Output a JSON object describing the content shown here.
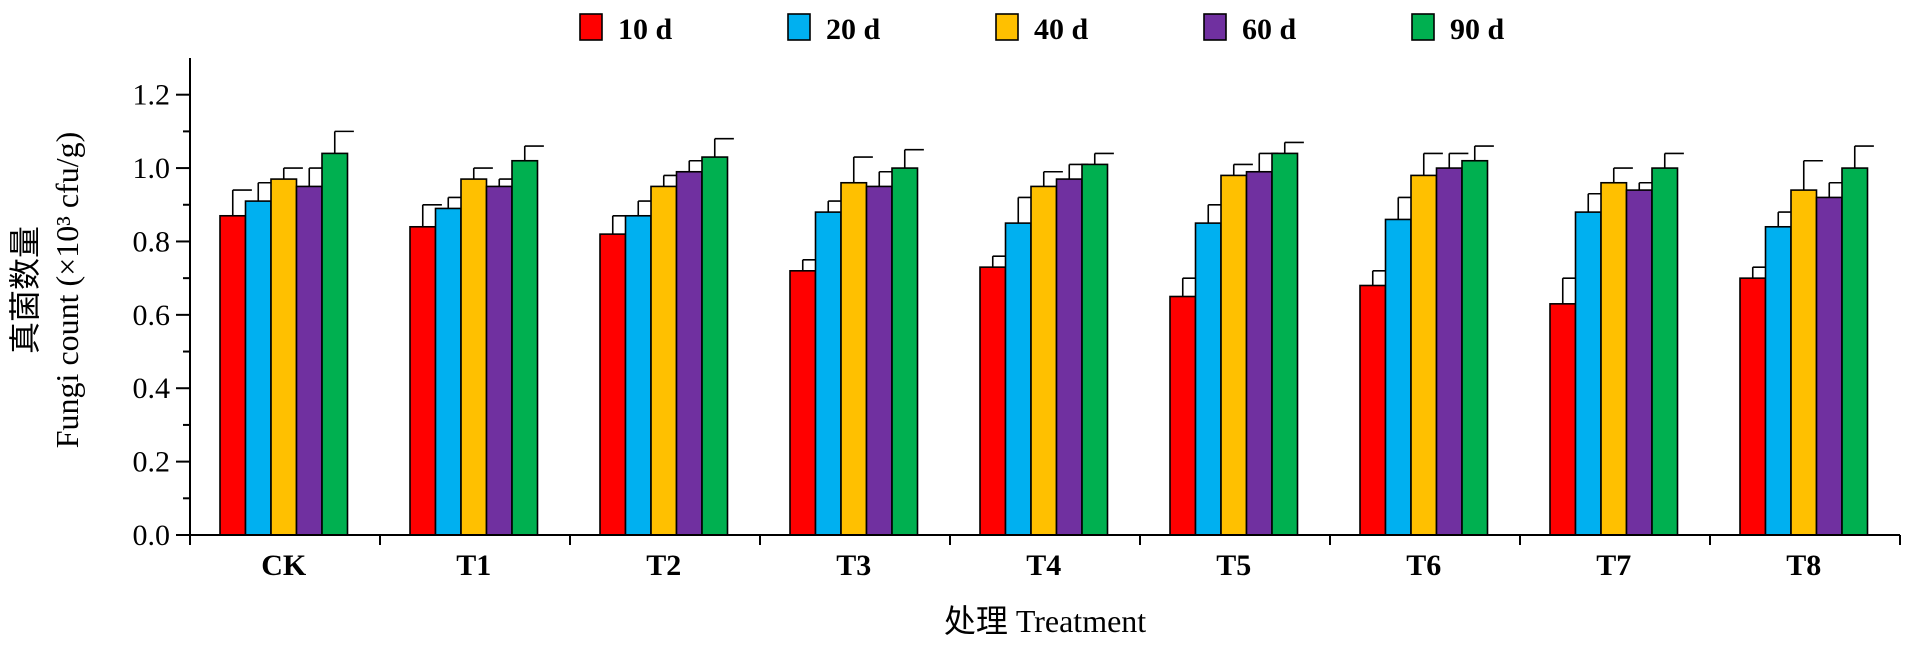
{
  "chart_data": {
    "type": "bar",
    "title": "",
    "xlabel": "处理 Treatment",
    "ylabel_cn": "真菌数量",
    "ylabel": "Fungi count (×10³ cfu/g)",
    "ylim": [
      0,
      1.3
    ],
    "yticks": [
      "0.0",
      "0.2",
      "0.4",
      "0.6",
      "0.8",
      "1.0",
      "1.2"
    ],
    "ytick_values": [
      0,
      0.2,
      0.4,
      0.6,
      0.8,
      1.0,
      1.2
    ],
    "grid": false,
    "legend_position": "top",
    "categories": [
      "CK",
      "T1",
      "T2",
      "T3",
      "T4",
      "T5",
      "T6",
      "T7",
      "T8"
    ],
    "series": [
      {
        "name": "10 d",
        "color": "#ff0000",
        "values": [
          0.87,
          0.84,
          0.82,
          0.72,
          0.73,
          0.65,
          0.68,
          0.63,
          0.7
        ],
        "errors": [
          0.07,
          0.06,
          0.05,
          0.03,
          0.03,
          0.05,
          0.04,
          0.07,
          0.03
        ]
      },
      {
        "name": "20 d",
        "color": "#00b0f0",
        "values": [
          0.91,
          0.89,
          0.87,
          0.88,
          0.85,
          0.85,
          0.86,
          0.88,
          0.84
        ],
        "errors": [
          0.05,
          0.03,
          0.04,
          0.03,
          0.07,
          0.05,
          0.06,
          0.05,
          0.04
        ]
      },
      {
        "name": "40 d",
        "color": "#ffc000",
        "values": [
          0.97,
          0.97,
          0.95,
          0.96,
          0.95,
          0.98,
          0.98,
          0.96,
          0.94
        ],
        "errors": [
          0.03,
          0.03,
          0.03,
          0.07,
          0.04,
          0.03,
          0.06,
          0.04,
          0.08
        ]
      },
      {
        "name": "60 d",
        "color": "#7030a0",
        "values": [
          0.95,
          0.95,
          0.99,
          0.95,
          0.97,
          0.99,
          1.0,
          0.94,
          0.92
        ],
        "errors": [
          0.05,
          0.02,
          0.03,
          0.04,
          0.04,
          0.05,
          0.04,
          0.02,
          0.04
        ]
      },
      {
        "name": "90 d",
        "color": "#00b050",
        "values": [
          1.04,
          1.02,
          1.03,
          1.0,
          1.01,
          1.04,
          1.02,
          1.0,
          1.0
        ],
        "errors": [
          0.06,
          0.04,
          0.05,
          0.05,
          0.03,
          0.03,
          0.04,
          0.04,
          0.06
        ]
      }
    ]
  }
}
